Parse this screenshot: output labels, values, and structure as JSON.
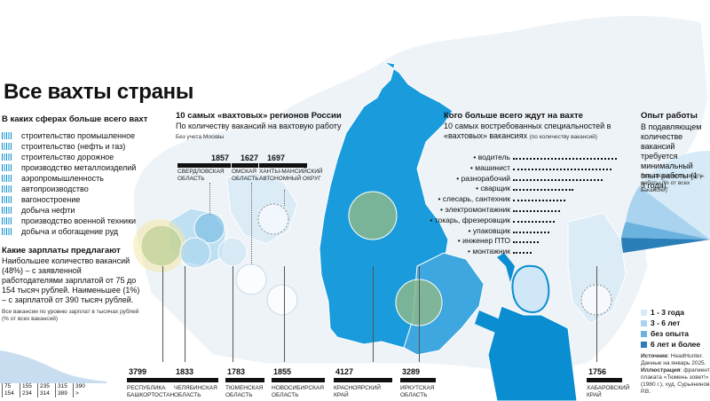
{
  "title": "Все вахты страны",
  "sectors": {
    "heading": "В каких сферах больше всего вахт",
    "items": [
      "строительство промышленное",
      "строительство (нефть и газ)",
      "строительство дорожное",
      "производство металлоизделий",
      "аэропромышленность",
      "автопроизводство",
      "вагоностроение",
      "добыча нефти",
      "производство военной техники",
      "добыча и обогащение руд"
    ]
  },
  "salary": {
    "heading": "Какие зарплаты предлагают",
    "text": "Наибольшее количество вакансий (48%) – с заявленной работодателями зарплатой от 75 до 154 тысяч рублей. Наименьшее (1%) – с зарплатой от 390 тысяч рублей.",
    "note": "Все вакансии по уровню зарплат в тысячах рублей (% от всех вакансий)",
    "ranges": [
      {
        "from": "75",
        "to": "154"
      },
      {
        "from": "155",
        "to": "234"
      },
      {
        "from": "235",
        "to": "314"
      },
      {
        "from": "315",
        "to": "389"
      },
      {
        "from": "390",
        "to": ">"
      }
    ]
  },
  "regions_block": {
    "heading": "10 самых «вахтовых» регионов России",
    "subheading": "По количеству вакансий на вахтовую работу",
    "note": "Без учета Москвы",
    "top": [
      {
        "value": "1857",
        "name": "Свердловская область"
      },
      {
        "value": "1627",
        "name": "Омская область"
      },
      {
        "value": "1697",
        "name": "Ханты-Мансийский автономный округ"
      }
    ],
    "bottom": [
      {
        "value": "3799",
        "name": "Республика Башкортостан"
      },
      {
        "value": "1833",
        "name": "Челябинская область"
      },
      {
        "value": "1783",
        "name": "Тюменская область"
      },
      {
        "value": "1855",
        "name": "Новосибирская область"
      },
      {
        "value": "4127",
        "name": "Красноярский край"
      },
      {
        "value": "3289",
        "name": "Иркутская область"
      },
      {
        "value": "1756",
        "name": "Хабаровский край"
      }
    ]
  },
  "professions": {
    "heading": "Кого больше всего ждут на вахте",
    "subheading": "10 самых востребованных специальностей в «вахтовых» вакансиях",
    "subheading_note": "(по количеству вакансий)",
    "items": [
      {
        "label": "водитель",
        "share": 1.0
      },
      {
        "label": "машинист",
        "share": 0.95
      },
      {
        "label": "разнорабочий",
        "share": 0.86
      },
      {
        "label": "сварщик",
        "share": 0.58
      },
      {
        "label": "слесарь, сантехник",
        "share": 0.5
      },
      {
        "label": "электромонтажник",
        "share": 0.45
      },
      {
        "label": "токарь, фрезеровщик",
        "share": 0.4
      },
      {
        "label": "упаковщик",
        "share": 0.35
      },
      {
        "label": "инженер ПТО",
        "share": 0.25
      },
      {
        "label": "монтажник",
        "share": 0.18
      }
    ]
  },
  "experience": {
    "heading": "Опыт работы",
    "text": "В подавляющем количестве вакансий требуется минимальный опыт работы (1 – 3 года).",
    "note": "Все вакансии по опыту работы (% от всех вакансий)",
    "legend": [
      {
        "label": "1 - 3 года",
        "color": "#d6ebf7"
      },
      {
        "label": "3 - 6 лет",
        "color": "#a9d3ee"
      },
      {
        "label": "без опыта",
        "color": "#6bb3de"
      },
      {
        "label": "6 лет и более",
        "color": "#2b7fb8"
      }
    ]
  },
  "source": {
    "label": "Источник",
    "text": ": HeadHunter. Данные на январь 2025.",
    "illustration_label": "Иллюстрация",
    "illustration_text": ": фрагмент плаката «Тюмень зовет!» (1980 г.), худ. Сурьянинов Р.В."
  },
  "colors": {
    "accent": "#0a8dd1",
    "map_light": "#e9f2f8",
    "map_border": "#ffffff",
    "circle_fill": "#8bb98c"
  }
}
